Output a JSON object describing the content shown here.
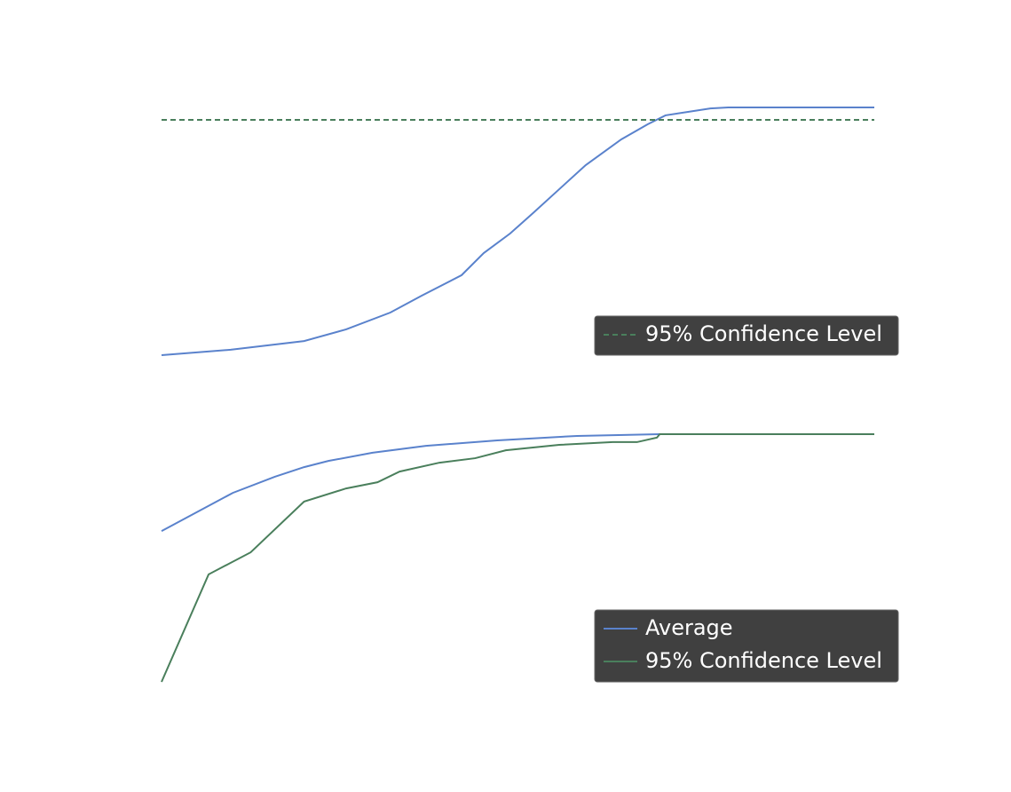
{
  "chart_data": [
    {
      "type": "line",
      "xlim": [
        0,
        100
      ],
      "ylim": [
        0,
        1
      ],
      "legend": "lower right",
      "series": [
        {
          "color": "#5a82cc",
          "x": [
            0,
            9.7,
            20.0,
            25.9,
            32.1,
            36.5,
            42.1,
            45.2,
            48.9,
            52.1,
            55.8,
            59.5,
            64.5,
            68.2,
            70.7,
            77.0,
            79.5,
            100
          ],
          "values": [
            0,
            0.022,
            0.057,
            0.104,
            0.172,
            0.24,
            0.323,
            0.412,
            0.491,
            0.573,
            0.67,
            0.767,
            0.871,
            0.932,
            0.968,
            0.996,
            1,
            1
          ]
        },
        {
          "name": "95% Confidence Level",
          "color": "#4a7f5c",
          "dashed": true,
          "x": [
            0,
            100
          ],
          "values": [
            0.95,
            0.95
          ]
        }
      ]
    },
    {
      "type": "line",
      "xlim": [
        0,
        100
      ],
      "ylim": [
        0,
        1
      ],
      "legend": "lower right",
      "series": [
        {
          "name": "Average",
          "color": "#5a82cc",
          "x": [
            0,
            10.0,
            15.9,
            20.0,
            23.4,
            29.6,
            37.1,
            47.1,
            58.3,
            69.9,
            100
          ],
          "values": [
            0.609,
            0.763,
            0.828,
            0.867,
            0.892,
            0.925,
            0.953,
            0.975,
            0.993,
            1,
            1
          ]
        },
        {
          "name": "95% Confidence Level",
          "color": "#4a7f5c",
          "x": [
            0,
            6.6,
            12.5,
            20.0,
            25.9,
            30.3,
            33.4,
            39.0,
            44.0,
            48.3,
            55.8,
            63.3,
            66.7,
            69.5,
            69.9,
            100
          ],
          "values": [
            0,
            0.434,
            0.523,
            0.728,
            0.781,
            0.806,
            0.849,
            0.885,
            0.903,
            0.935,
            0.957,
            0.968,
            0.968,
            0.986,
            1,
            1
          ]
        }
      ]
    }
  ]
}
